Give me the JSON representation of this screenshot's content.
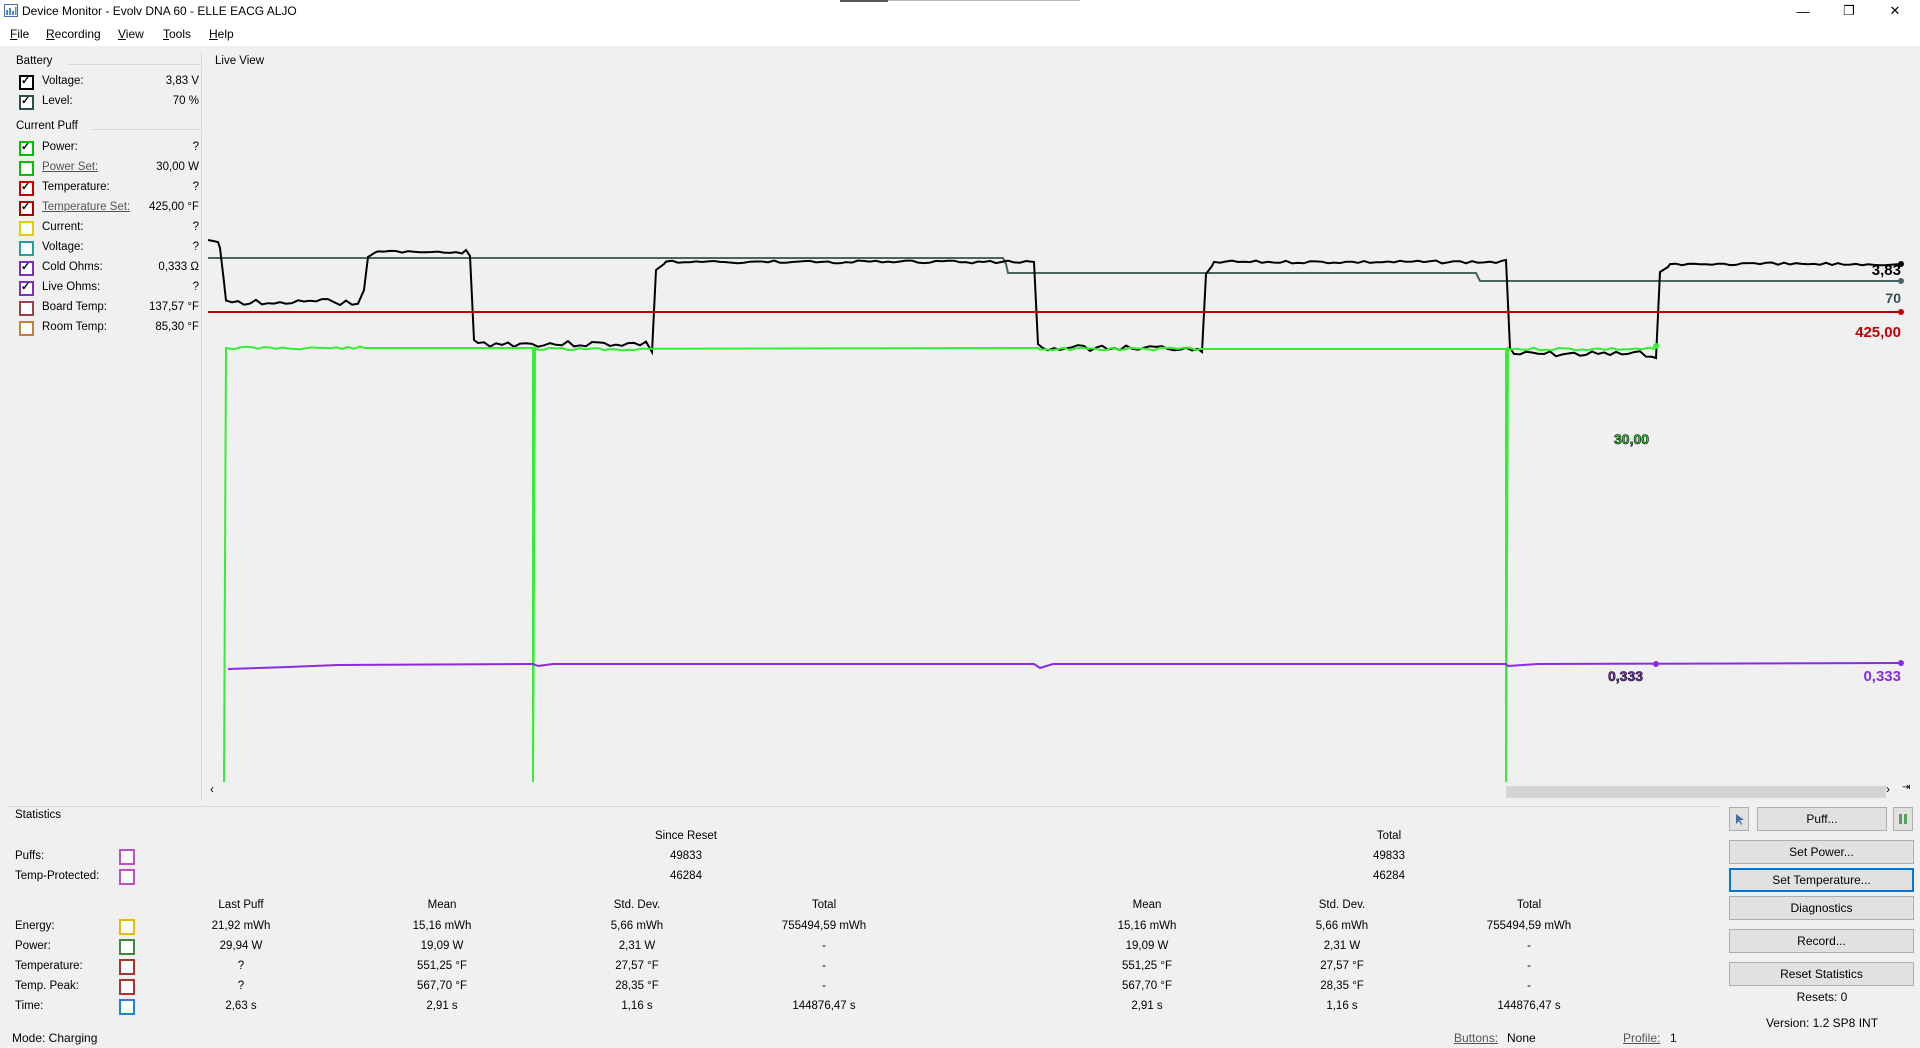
{
  "window": {
    "title": "Device Monitor - Evolv DNA 60 - ELLE EACG ALJO",
    "minimize_glyph": "—",
    "maximize_glyph": "❐",
    "close_glyph": "✕"
  },
  "menu": [
    "File",
    "Recording",
    "View",
    "Tools",
    "Help"
  ],
  "battery": {
    "title": "Battery",
    "rows": [
      {
        "label": "Voltage:",
        "value": "3,83 V",
        "color": "#000000",
        "checked": true
      },
      {
        "label": "Level:",
        "value": "70 %",
        "color": "#2f4f4f",
        "checked": true
      }
    ]
  },
  "current_puff": {
    "title": "Current Puff",
    "rows": [
      {
        "label": "Power:",
        "value": "?",
        "color": "#00c000",
        "checked": true,
        "link": false
      },
      {
        "label": "Power Set:",
        "value": "30,00 W",
        "color": "#00c000",
        "checked": false,
        "link": true
      },
      {
        "label": "Temperature:",
        "value": "?",
        "color": "#cc0000",
        "checked": true,
        "link": false
      },
      {
        "label": "Temperature Set:",
        "value": "425,00 °F",
        "color": "#aa0000",
        "checked": true,
        "link": true
      },
      {
        "label": "Current:",
        "value": "?",
        "color": "#e0d000",
        "checked": false,
        "link": false
      },
      {
        "label": "Voltage:",
        "value": "?",
        "color": "#20a0a0",
        "checked": false,
        "link": false
      },
      {
        "label": "Cold Ohms:",
        "value": "0,333 Ω",
        "color": "#7b2fbe",
        "checked": true,
        "link": false
      },
      {
        "label": "Live Ohms:",
        "value": "?",
        "color": "#7b2fbe",
        "checked": true,
        "link": false
      },
      {
        "label": "Board Temp:",
        "value": "137,57 °F",
        "color": "#a04040",
        "checked": false,
        "link": false
      },
      {
        "label": "Room Temp:",
        "value": "85,30 °F",
        "color": "#c08040",
        "checked": false,
        "link": false
      }
    ]
  },
  "live_view": {
    "title": "Live View",
    "end_labels": {
      "voltage": "3,83",
      "level": "70",
      "temp_set": "425,00",
      "power_cursor": "30,00",
      "ohms_cursor": "0,333",
      "ohms": "0,333"
    },
    "colors": {
      "voltage": "#000000",
      "level": "#4a6464",
      "temp_set": "#c00000",
      "power": "#33ee33",
      "ohms": "#8a2be2"
    }
  },
  "statistics": {
    "title": "Statistics",
    "since_reset_header": "Since Reset",
    "total_header": "Total",
    "count_rows": [
      {
        "label": "Puffs:",
        "color": "#c050c0",
        "since_reset": "49833",
        "total": "49833"
      },
      {
        "label": "Temp-Protected:",
        "color": "#c050c0",
        "since_reset": "46284",
        "total": "46284"
      }
    ],
    "columns": [
      "Last Puff",
      "Mean",
      "Std. Dev.",
      "Total",
      "Mean",
      "Std. Dev.",
      "Total"
    ],
    "rows": [
      {
        "label": "Energy:",
        "color": "#e0c000",
        "values": [
          "21,92 mWh",
          "15,16 mWh",
          "5,66 mWh",
          "755494,59 mWh",
          "15,16 mWh",
          "5,66 mWh",
          "755494,59 mWh"
        ]
      },
      {
        "label": "Power:",
        "color": "#3a8a3a",
        "values": [
          "29,94 W",
          "19,09 W",
          "2,31 W",
          "-",
          "19,09 W",
          "2,31 W",
          "-"
        ]
      },
      {
        "label": "Temperature:",
        "color": "#b03030",
        "values": [
          "?",
          "551,25 °F",
          "27,57 °F",
          "-",
          "551,25 °F",
          "27,57 °F",
          "-"
        ]
      },
      {
        "label": "Temp. Peak:",
        "color": "#b03030",
        "values": [
          "?",
          "567,70 °F",
          "28,35 °F",
          "-",
          "567,70 °F",
          "28,35 °F",
          "-"
        ]
      },
      {
        "label": "Time:",
        "color": "#2080e0",
        "values": [
          "2,63 s",
          "2,91 s",
          "1,16 s",
          "144876,47 s",
          "2,91 s",
          "1,16 s",
          "144876,47 s"
        ]
      }
    ]
  },
  "buttons": {
    "puff": "Puff...",
    "set_power": "Set Power...",
    "set_temperature": "Set Temperature...",
    "diagnostics": "Diagnostics",
    "record": "Record...",
    "reset_statistics": "Reset Statistics",
    "resets": "Resets: 0",
    "version": "Version: 1.2 SP8 INT"
  },
  "status": {
    "mode": "Mode: Charging",
    "buttons_label": "Buttons:",
    "buttons_value": "None",
    "profile_label": "Profile:",
    "profile_value": "1"
  }
}
